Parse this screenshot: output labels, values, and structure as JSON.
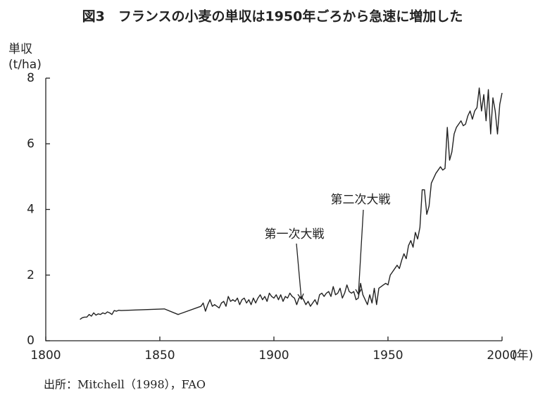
{
  "chart_data": {
    "type": "line",
    "title": "図3　フランスの小麦の単収は1950年ごろから急速に増加した",
    "ylabel": "単収",
    "ylabel_unit": "(t/ha)",
    "xlabel_unit": "(年)",
    "source": "出所：Mitchell（1998），FAO",
    "annotations": [
      "第一次大戦",
      "第二次大戦"
    ],
    "color": "#222222",
    "x": [
      1815,
      1816,
      1817,
      1818,
      1819,
      1820,
      1821,
      1822,
      1823,
      1824,
      1825,
      1826,
      1827,
      1828,
      1829,
      1830,
      1831,
      1832,
      1833,
      1852,
      1858,
      1868,
      1869,
      1870,
      1871,
      1872,
      1873,
      1874,
      1875,
      1876,
      1877,
      1878,
      1879,
      1880,
      1881,
      1882,
      1883,
      1884,
      1885,
      1886,
      1887,
      1888,
      1889,
      1890,
      1891,
      1892,
      1893,
      1894,
      1895,
      1896,
      1897,
      1898,
      1899,
      1900,
      1901,
      1902,
      1903,
      1904,
      1905,
      1906,
      1907,
      1908,
      1909,
      1910,
      1911,
      1912,
      1913,
      1914,
      1915,
      1916,
      1917,
      1918,
      1919,
      1920,
      1921,
      1922,
      1923,
      1924,
      1925,
      1926,
      1927,
      1928,
      1929,
      1930,
      1931,
      1932,
      1933,
      1934,
      1935,
      1936,
      1937,
      1938,
      1939,
      1940,
      1941,
      1942,
      1943,
      1944,
      1945,
      1946,
      1947,
      1948,
      1949,
      1950,
      1951,
      1952,
      1953,
      1954,
      1955,
      1956,
      1957,
      1958,
      1959,
      1960,
      1961,
      1962,
      1963,
      1964,
      1965,
      1966,
      1967,
      1968,
      1969,
      1970,
      1971,
      1972,
      1973,
      1974,
      1975,
      1976,
      1977,
      1978,
      1979,
      1980,
      1981,
      1982,
      1983,
      1984,
      1985,
      1986,
      1987,
      1988,
      1989,
      1990,
      1991,
      1992,
      1993,
      1994,
      1995,
      1996,
      1997,
      1998,
      1999,
      2000
    ],
    "values": [
      0.65,
      0.7,
      0.72,
      0.72,
      0.8,
      0.75,
      0.85,
      0.78,
      0.82,
      0.8,
      0.85,
      0.82,
      0.88,
      0.85,
      0.8,
      0.92,
      0.9,
      0.93,
      0.92,
      0.97,
      0.8,
      1.05,
      1.15,
      0.9,
      1.1,
      1.25,
      1.05,
      1.1,
      1.05,
      1.0,
      1.15,
      1.2,
      1.05,
      1.35,
      1.2,
      1.25,
      1.2,
      1.3,
      1.1,
      1.25,
      1.3,
      1.15,
      1.25,
      1.1,
      1.3,
      1.15,
      1.3,
      1.4,
      1.25,
      1.35,
      1.2,
      1.45,
      1.35,
      1.3,
      1.4,
      1.25,
      1.4,
      1.2,
      1.35,
      1.3,
      1.45,
      1.35,
      1.3,
      1.1,
      1.3,
      1.35,
      1.25,
      1.1,
      1.2,
      1.05,
      1.15,
      1.25,
      1.1,
      1.4,
      1.45,
      1.35,
      1.45,
      1.5,
      1.35,
      1.65,
      1.4,
      1.45,
      1.6,
      1.3,
      1.45,
      1.7,
      1.5,
      1.45,
      1.5,
      1.25,
      1.3,
      1.75,
      1.4,
      1.25,
      1.1,
      1.4,
      1.15,
      1.6,
      1.1,
      1.6,
      1.65,
      1.7,
      1.75,
      1.7,
      2.0,
      2.1,
      2.2,
      2.3,
      2.2,
      2.45,
      2.65,
      2.5,
      2.9,
      3.05,
      2.85,
      3.3,
      3.1,
      3.45,
      4.6,
      4.6,
      3.85,
      4.1,
      4.8,
      4.95,
      5.1,
      5.2,
      5.3,
      5.2,
      5.25,
      6.5,
      5.5,
      5.75,
      6.3,
      6.5,
      6.6,
      6.7,
      6.55,
      6.6,
      6.85,
      7.0,
      6.75,
      7.0,
      7.1,
      7.7,
      7.0,
      7.5,
      6.7,
      7.65,
      6.3,
      7.4,
      7.0,
      6.3,
      7.2,
      7.55
    ],
    "xlim": [
      1800,
      2000
    ],
    "xticks": [
      1800,
      1850,
      1900,
      1950,
      2000
    ],
    "ylim": [
      0,
      8
    ],
    "yticks": [
      0,
      2,
      4,
      6,
      8
    ]
  }
}
